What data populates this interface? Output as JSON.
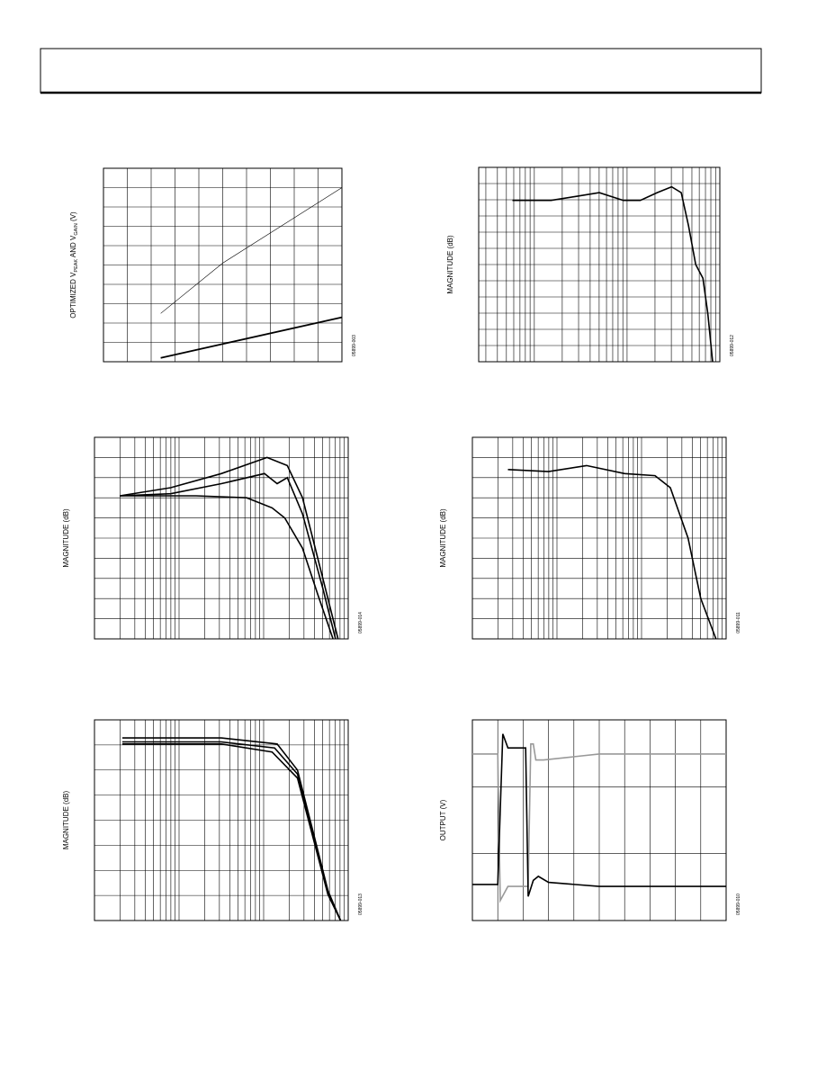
{
  "charts": [
    {
      "y_label": {
        "parts": [
          "OPTIMIZED V",
          "PEAK",
          " AND V",
          "GAIN",
          " (V)"
        ]
      },
      "figure_code": "05899-003"
    },
    {
      "y_label": "MAGNITUDE (dB)",
      "figure_code": "05899-012"
    },
    {
      "y_label": "MAGNITUDE (dB)",
      "figure_code": "05899-014"
    },
    {
      "y_label": "MAGNITUDE (dB)",
      "figure_code": "05899-011"
    },
    {
      "y_label": "MAGNITUDE (dB)",
      "figure_code": "05899-013"
    },
    {
      "y_label": "OUTPUT (V)",
      "figure_code": "05899-010"
    }
  ]
}
